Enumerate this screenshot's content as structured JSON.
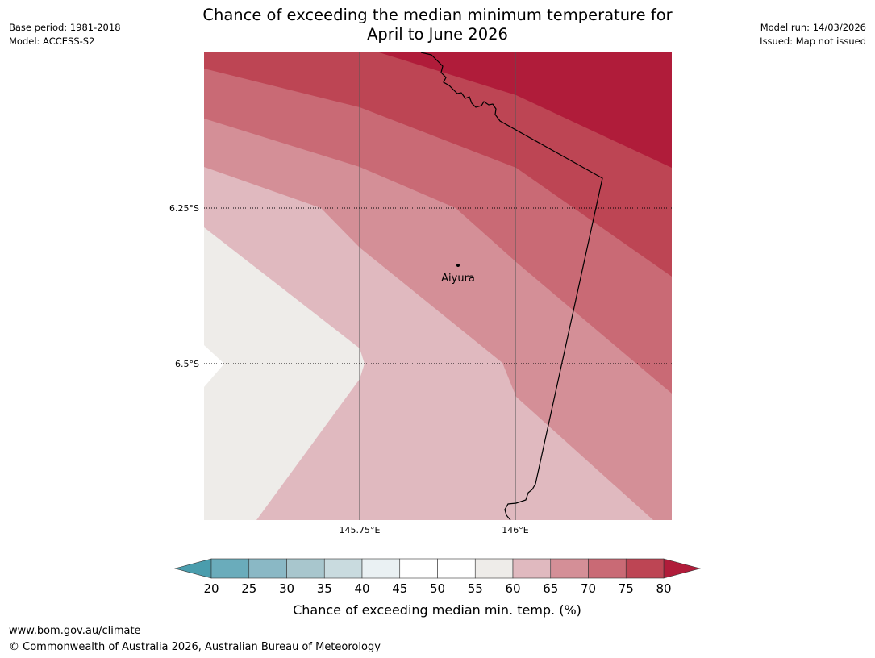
{
  "title": {
    "line1": "Chance of exceeding the median minimum temperature for",
    "line2": "April to June 2026"
  },
  "meta_left": {
    "base_period": "Base period: 1981-2018",
    "model": "Model: ACCESS-S2"
  },
  "meta_right": {
    "model_run": "Model run: 14/03/2026",
    "issued": "Issued: Map not issued"
  },
  "map": {
    "lat_labels": [
      "6.25°S",
      "6.5°S"
    ],
    "lon_labels": [
      "145.75°E",
      "146°E"
    ],
    "place": {
      "name": "Aiyura"
    }
  },
  "colorbar": {
    "label": "Chance of exceeding median min. temp. (%)",
    "ticks": [
      "20",
      "25",
      "30",
      "35",
      "40",
      "45",
      "50",
      "55",
      "60",
      "65",
      "70",
      "75",
      "80"
    ],
    "colors": [
      "#6aacbb",
      "#8ab8c5",
      "#a8c6cd",
      "#c9dbdf",
      "#eaf1f3",
      "#ffffff",
      "#ffffff",
      "#eeece9",
      "#e0b9bf",
      "#d48f97",
      "#c96a75",
      "#bd4554"
    ],
    "under_color": "#4a9dad",
    "over_color": "#b01c3a"
  },
  "footer": {
    "url": "www.bom.gov.au/climate",
    "copyright": "© Commonwealth of Australia 2026, Australian Bureau of Meteorology"
  }
}
